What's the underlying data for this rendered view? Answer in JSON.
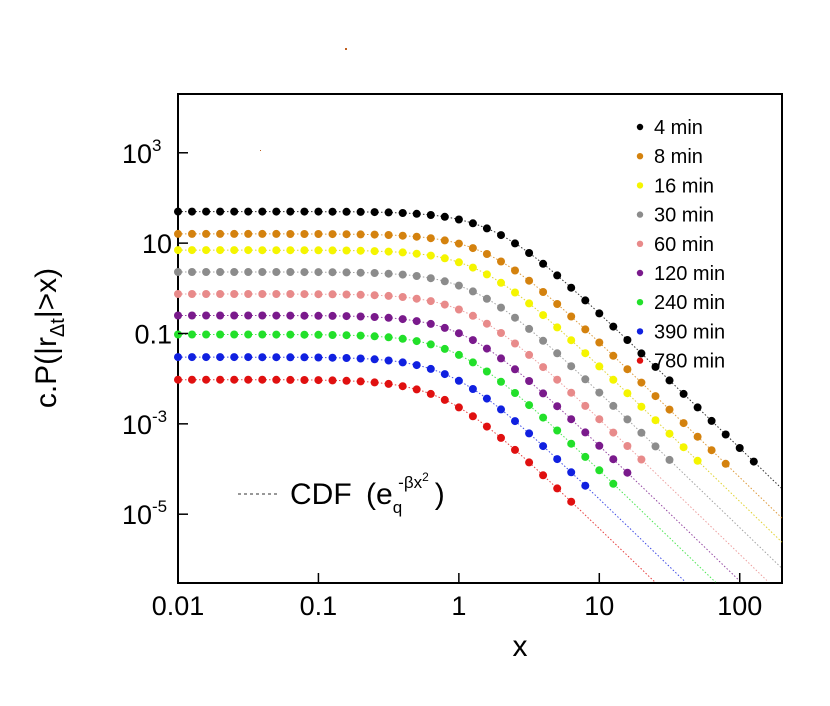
{
  "chart_data": {
    "type": "scatter",
    "xscale": "log",
    "yscale": "log",
    "xlim": [
      0.01,
      200
    ],
    "ylim": [
      3e-07,
      20000.0
    ],
    "xlabel": "x",
    "ylabel": {
      "prefix": "c.P(|r",
      "subscript": "Δt",
      "suffix": "|>x)"
    },
    "x_ticks": [
      {
        "value": 0.01,
        "label": "0.01"
      },
      {
        "value": 0.1,
        "label": "0.1"
      },
      {
        "value": 1,
        "label": "1"
      },
      {
        "value": 10,
        "label": "10"
      },
      {
        "value": 100,
        "label": "100"
      }
    ],
    "y_ticks": [
      {
        "value": 1e-05,
        "base": "10",
        "exp": "-5"
      },
      {
        "value": 0.001,
        "base": "10",
        "exp": "-3"
      },
      {
        "value": 0.1,
        "base": "0.1",
        "exp": ""
      },
      {
        "value": 10,
        "base": "10",
        "exp": ""
      },
      {
        "value": 1000,
        "base": "10",
        "exp": "3"
      }
    ],
    "fit_legend": {
      "text": "CDF",
      "formula_open": "(e",
      "formula_sub": "q",
      "formula_sup": "-βx",
      "formula_sup2": "2",
      "formula_close": ")"
    },
    "series": [
      {
        "name": "4 min",
        "color": "#000000",
        "plateau": 50,
        "x_scale": 1.8,
        "x_end": 140
      },
      {
        "name": "8 min",
        "color": "#d4820e",
        "plateau": 16,
        "x_scale": 1.6,
        "x_end": 85
      },
      {
        "name": "16 min",
        "color": "#f5f500",
        "plateau": 7,
        "x_scale": 1.4,
        "x_end": 55
      },
      {
        "name": "30 min",
        "color": "#8c8c8c",
        "plateau": 2.3,
        "x_scale": 1.3,
        "x_end": 35
      },
      {
        "name": "60 min",
        "color": "#e88a8a",
        "plateau": 0.75,
        "x_scale": 1.2,
        "x_end": 25
      },
      {
        "name": "120 min",
        "color": "#7a1a8c",
        "plateau": 0.25,
        "x_scale": 1.1,
        "x_end": 17
      },
      {
        "name": "240 min",
        "color": "#22e02a",
        "plateau": 0.095,
        "x_scale": 1.0,
        "x_end": 13
      },
      {
        "name": "390 min",
        "color": "#1020e0",
        "plateau": 0.03,
        "x_scale": 0.9,
        "x_end": 9.5
      },
      {
        "name": "780 min",
        "color": "#e01010",
        "plateau": 0.0095,
        "x_scale": 0.8,
        "x_end": 6.5
      }
    ]
  }
}
